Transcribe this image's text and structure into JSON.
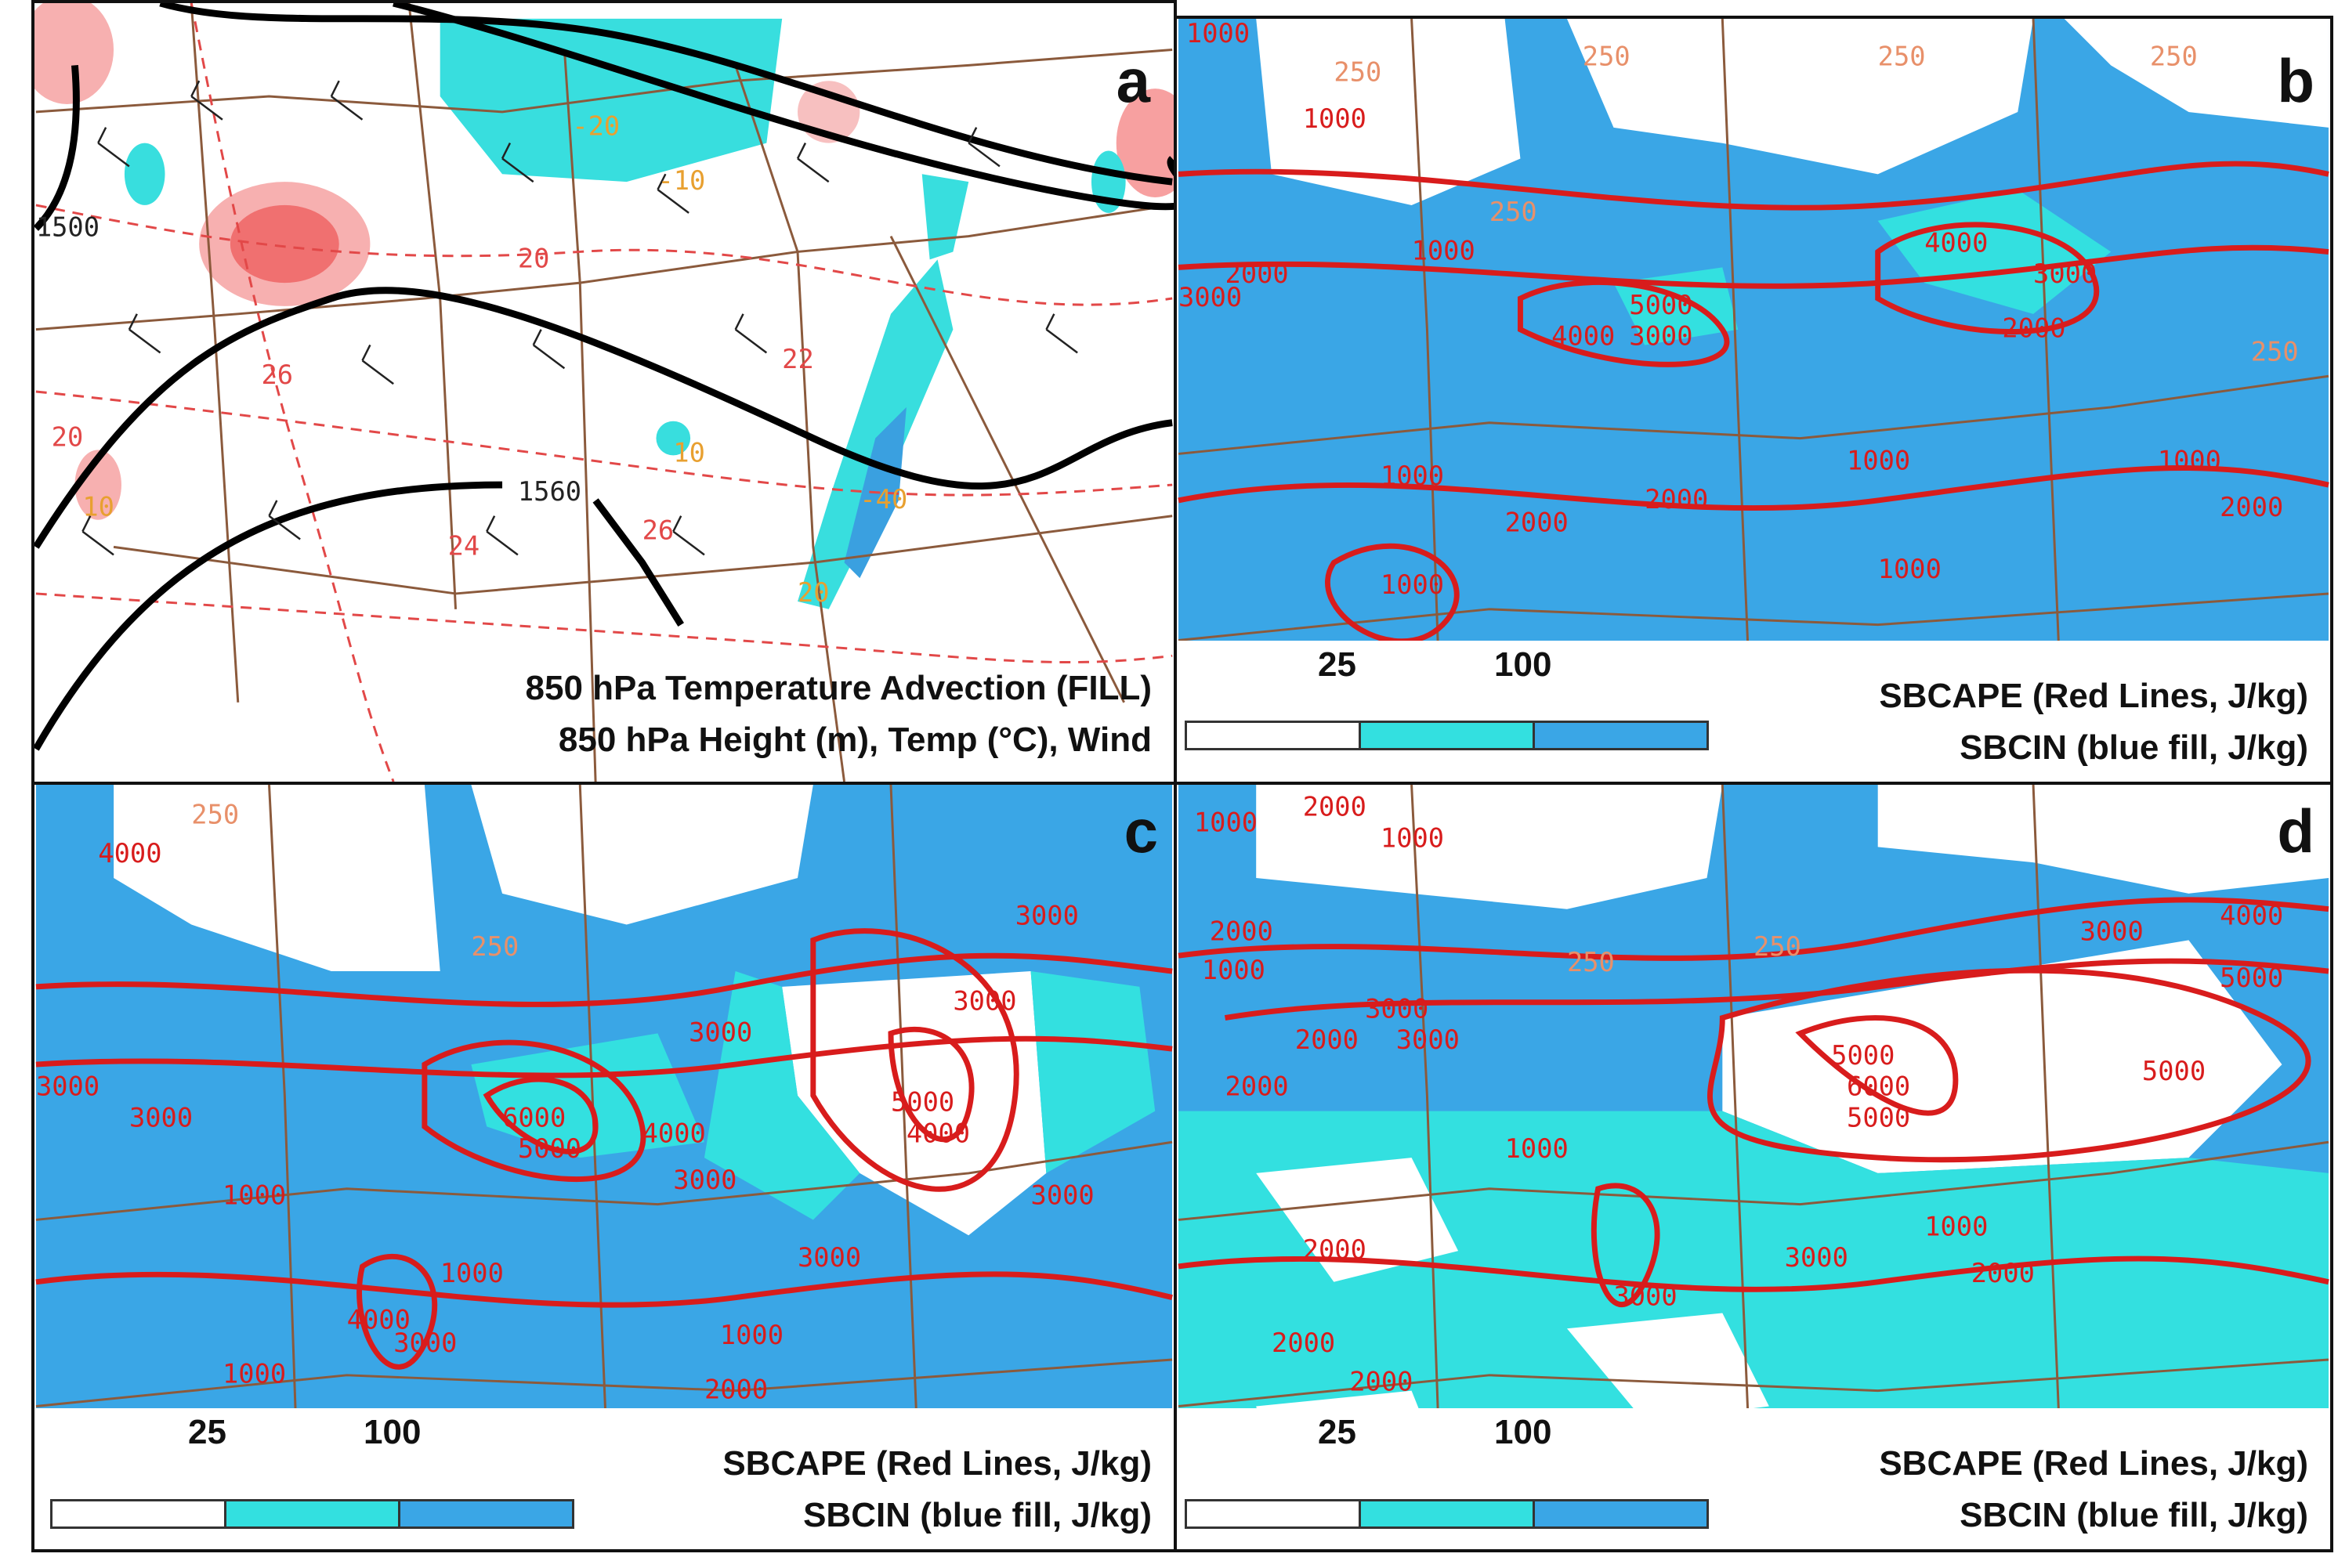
{
  "panels": {
    "a": {
      "letter": "a",
      "caption_line1": "850 hPa Temperature Advection (FILL)",
      "caption_line2": "850 hPa Height (m), Temp (°C), Wind",
      "map_labels": [
        "1500",
        "1560",
        "20",
        "22",
        "24",
        "26",
        "26",
        "20",
        "-20",
        "-10",
        "-40",
        "20",
        "10",
        "10"
      ]
    },
    "b": {
      "letter": "b",
      "caption_line1": "SBCAPE (Red Lines, J/kg)",
      "caption_line2": "SBCIN (blue fill, J/kg)",
      "colorbar_labels": [
        "25",
        "100"
      ],
      "map_labels": [
        "1000",
        "250",
        "250",
        "250",
        "250",
        "1000",
        "250",
        "1000",
        "2000",
        "3000",
        "5000",
        "4000",
        "3000",
        "4000",
        "3000",
        "2000",
        "1000",
        "1000",
        "2000",
        "2000",
        "1000",
        "1000",
        "1000",
        "2000",
        "250"
      ]
    },
    "c": {
      "letter": "c",
      "caption_line1": "SBCAPE (Red Lines, J/kg)",
      "caption_line2": "SBCIN (blue fill, J/kg)",
      "colorbar_labels": [
        "25",
        "100"
      ],
      "map_labels": [
        "4000",
        "250",
        "250",
        "3000",
        "3000",
        "3000",
        "3000",
        "3000",
        "6000",
        "5000",
        "4000",
        "5000",
        "4000",
        "3000",
        "1000",
        "1000",
        "4000",
        "3000",
        "1000",
        "1000",
        "2000",
        "3000",
        "3000"
      ]
    },
    "d": {
      "letter": "d",
      "caption_line1": "SBCAPE (Red Lines, J/kg)",
      "caption_line2": "SBCIN (blue fill, J/kg)",
      "colorbar_labels": [
        "25",
        "100"
      ],
      "map_labels": [
        "1000",
        "2000",
        "1000",
        "2000",
        "1000",
        "3000",
        "2000",
        "3000",
        "2000",
        "250",
        "250",
        "3000",
        "4000",
        "5000",
        "6000",
        "5000",
        "5000",
        "5000",
        "1000",
        "2000",
        "3000",
        "3000",
        "1000",
        "2000",
        "2000",
        "2000"
      ]
    }
  },
  "colors": {
    "cin_light": "#33e0e0",
    "cin_dark": "#3aa6e6",
    "cape_line": "#d81c1c",
    "adv_warm": "#f06a6a",
    "height_line": "#000000",
    "border_line": "#8b5a3c"
  }
}
